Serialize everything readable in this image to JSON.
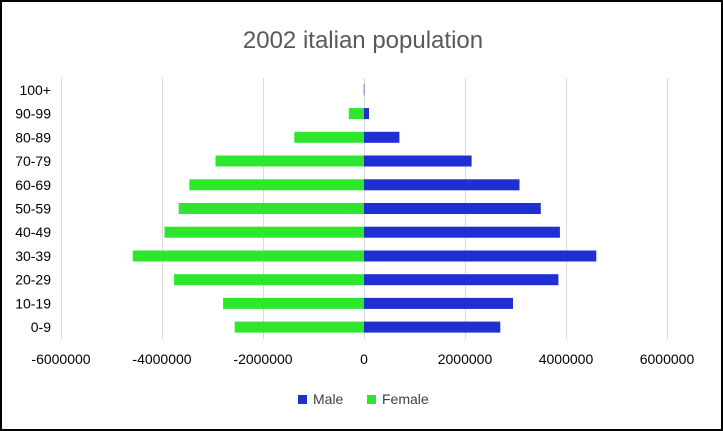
{
  "chart_data": {
    "type": "bar",
    "orientation": "horizontal",
    "stacked": true,
    "title": "2002 italian population",
    "xlabel": "",
    "ylabel": "",
    "categories": [
      "0-9",
      "10-19",
      "20-29",
      "30-39",
      "40-49",
      "50-59",
      "60-69",
      "70-79",
      "80-89",
      "90-99",
      "100+"
    ],
    "series": [
      {
        "name": "Male",
        "color": "#1F2FD1",
        "values": [
          2700000,
          2950000,
          3850000,
          4600000,
          3880000,
          3500000,
          3080000,
          2130000,
          700000,
          100000,
          5000
        ]
      },
      {
        "name": "Female",
        "color": "#2EE62E",
        "values": [
          -2560000,
          -2790000,
          -3760000,
          -4580000,
          -3950000,
          -3670000,
          -3460000,
          -2940000,
          -1380000,
          -300000,
          -10000
        ]
      }
    ],
    "xlim": [
      -6000000,
      6000000
    ],
    "xticks": [
      -6000000,
      -4000000,
      -2000000,
      0,
      2000000,
      4000000,
      6000000
    ],
    "xtick_labels": [
      "-6000000",
      "-4000000",
      "-2000000",
      "0",
      "2000000",
      "4000000",
      "6000000"
    ],
    "grid": true,
    "legend_position": "bottom"
  }
}
